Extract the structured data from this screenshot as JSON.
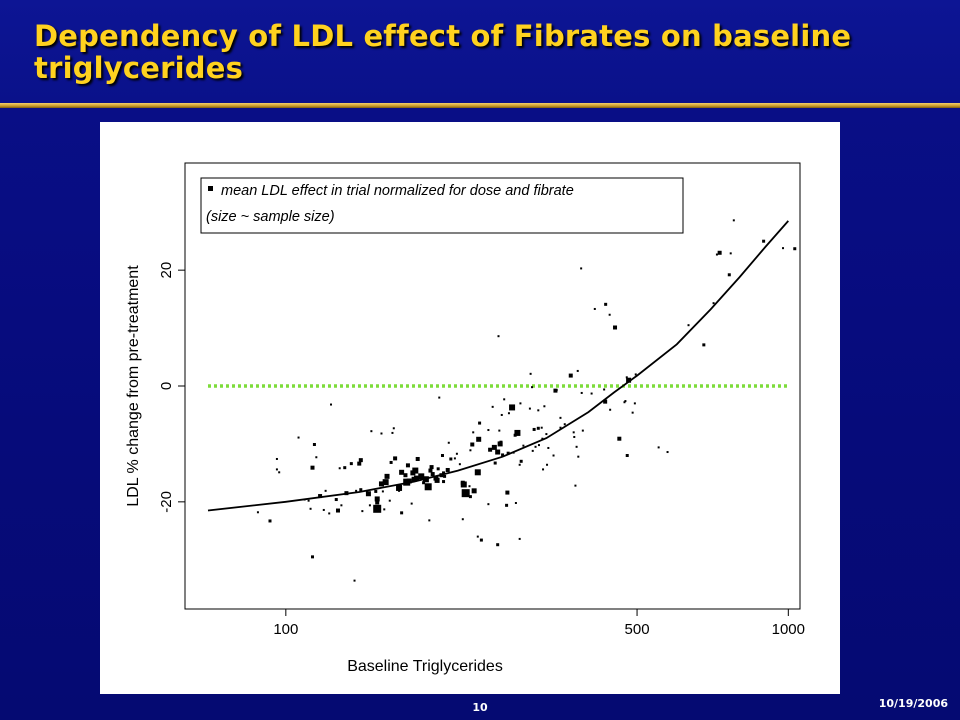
{
  "slide": {
    "title": "Dependency of LDL effect of Fibrates on baseline triglycerides",
    "date": "10/19/2006",
    "page_number": "10",
    "colors": {
      "background": "#08108a",
      "title": "#ffd21f",
      "rule": "#d4a83a",
      "reference_line": "#7ddc3a"
    }
  },
  "chart_data": {
    "type": "scatter",
    "xlabel": "Baseline Triglycerides",
    "ylabel": "LDL % change from pre-treatment",
    "x_scale": "log",
    "xlim": [
      63,
      1055
    ],
    "ylim": [
      -38.5,
      38.5
    ],
    "x_ticks": [
      100,
      500,
      1000
    ],
    "x_tick_labels": [
      "100",
      "500",
      "1000"
    ],
    "y_ticks": [
      -20,
      0,
      20
    ],
    "y_tick_labels": [
      "-20",
      "0",
      "20"
    ],
    "legend": {
      "position": "top-left",
      "line1": "mean LDL effect in trial normalized for dose and fibrate",
      "line2": "(size ~ sample size)"
    },
    "reference_line": {
      "y": 0,
      "style": "dotted",
      "color": "#7ddc3a"
    },
    "fit_curve": [
      [
        70,
        -21.5
      ],
      [
        100,
        -20
      ],
      [
        140,
        -18.3
      ],
      [
        180,
        -16.5
      ],
      [
        220,
        -14.6
      ],
      [
        270,
        -12.2
      ],
      [
        330,
        -9.0
      ],
      [
        400,
        -4.5
      ],
      [
        450,
        -1.1
      ],
      [
        500,
        1.8
      ],
      [
        600,
        7.2
      ],
      [
        700,
        13.2
      ],
      [
        800,
        18.8
      ],
      [
        900,
        24.0
      ],
      [
        1000,
        28.5
      ]
    ],
    "points": [
      [
        88,
        -21.8,
        2
      ],
      [
        93,
        -23.3,
        3
      ],
      [
        96,
        -12.6,
        2
      ],
      [
        96,
        -14.4,
        2
      ],
      [
        97,
        -14.9,
        2
      ],
      [
        106,
        -8.9,
        2
      ],
      [
        109,
        -19.6,
        2
      ],
      [
        111,
        -19.8,
        2
      ],
      [
        112,
        -21.2,
        2
      ],
      [
        113,
        -14.1,
        4
      ],
      [
        113,
        -29.5,
        3
      ],
      [
        114,
        -10.1,
        3
      ],
      [
        115,
        -12.3,
        2
      ],
      [
        117,
        -19.0,
        4
      ],
      [
        119,
        -21.4,
        2
      ],
      [
        120,
        -18.1,
        2
      ],
      [
        122,
        -22.0,
        2
      ],
      [
        123,
        -3.2,
        2
      ],
      [
        126,
        -19.6,
        3
      ],
      [
        127,
        -21.5,
        4
      ],
      [
        128,
        -14.2,
        2
      ],
      [
        129,
        -20.6,
        2
      ],
      [
        131,
        -14.1,
        3
      ],
      [
        132,
        -18.5,
        4
      ],
      [
        135,
        -13.4,
        3
      ],
      [
        137,
        -33.6,
        2
      ],
      [
        138,
        -18.1,
        2
      ],
      [
        140,
        -13.4,
        4
      ],
      [
        141,
        -12.8,
        4
      ],
      [
        141,
        -17.9,
        3
      ],
      [
        142,
        -21.6,
        2
      ],
      [
        145,
        -18.2,
        2
      ],
      [
        146,
        -18.6,
        5
      ],
      [
        147,
        -20.6,
        2
      ],
      [
        148,
        -7.8,
        2
      ],
      [
        151,
        -18.2,
        3
      ],
      [
        152,
        -19.5,
        5
      ],
      [
        152,
        -21.2,
        8
      ],
      [
        152,
        -20.1,
        4
      ],
      [
        155,
        -16.9,
        5
      ],
      [
        155,
        -8.2,
        2
      ],
      [
        156,
        -18.2,
        2
      ],
      [
        157,
        -21.3,
        2
      ],
      [
        158,
        -16.6,
        6
      ],
      [
        159,
        -15.6,
        5
      ],
      [
        161,
        -19.8,
        2
      ],
      [
        162,
        -13.2,
        3
      ],
      [
        163,
        -8.1,
        2
      ],
      [
        164,
        -7.3,
        2
      ],
      [
        165,
        -12.5,
        4
      ],
      [
        168,
        -18.1,
        2
      ],
      [
        168,
        -17.6,
        6
      ],
      [
        170,
        -21.9,
        3
      ],
      [
        170,
        -14.9,
        5
      ],
      [
        173,
        -15.4,
        4
      ],
      [
        174,
        -16.6,
        7
      ],
      [
        175,
        -13.7,
        4
      ],
      [
        176,
        -16.4,
        5
      ],
      [
        178,
        -20.3,
        2
      ],
      [
        179,
        -15.0,
        5
      ],
      [
        180,
        -16.1,
        5
      ],
      [
        181,
        -14.6,
        6
      ],
      [
        182,
        -15.9,
        5
      ],
      [
        183,
        -12.6,
        4
      ],
      [
        186,
        -15.6,
        6
      ],
      [
        188,
        -16.7,
        3
      ],
      [
        190,
        -16.1,
        6
      ],
      [
        192,
        -17.4,
        7
      ],
      [
        193,
        -23.2,
        2
      ],
      [
        194,
        -14.6,
        4
      ],
      [
        195,
        -14.0,
        4
      ],
      [
        196,
        -15.2,
        4
      ],
      [
        199,
        -15.9,
        5
      ],
      [
        200,
        -16.3,
        5
      ],
      [
        201,
        -14.3,
        3
      ],
      [
        202,
        -2.0,
        2
      ],
      [
        204,
        -15.4,
        4
      ],
      [
        205,
        -12.0,
        3
      ],
      [
        206,
        -15.0,
        3
      ],
      [
        206,
        -16.5,
        3
      ],
      [
        207,
        -15.6,
        3
      ],
      [
        210,
        -14.5,
        4
      ],
      [
        211,
        -9.8,
        2
      ],
      [
        213,
        -12.6,
        3
      ],
      [
        217,
        -12.5,
        2
      ],
      [
        219,
        -11.7,
        2
      ],
      [
        222,
        -13.5,
        2
      ],
      [
        225,
        -23.0,
        2
      ],
      [
        225,
        -16.7,
        4
      ],
      [
        226,
        -17.0,
        6
      ],
      [
        228,
        -18.5,
        8
      ],
      [
        232,
        -17.3,
        2
      ],
      [
        233,
        -11.1,
        2
      ],
      [
        233,
        -19.1,
        3
      ],
      [
        235,
        -10.1,
        4
      ],
      [
        236,
        -8.0,
        2
      ],
      [
        237,
        -18.1,
        5
      ],
      [
        241,
        -26.0,
        2
      ],
      [
        241,
        -14.9,
        6
      ],
      [
        242,
        -9.2,
        5
      ],
      [
        243,
        -6.4,
        3
      ],
      [
        245,
        -26.6,
        3
      ],
      [
        253,
        -20.4,
        2
      ],
      [
        253,
        -7.6,
        2
      ],
      [
        255,
        -11.0,
        4
      ],
      [
        258,
        -3.6,
        2
      ],
      [
        260,
        -10.6,
        5
      ],
      [
        261,
        -13.3,
        3
      ],
      [
        264,
        -27.4,
        3
      ],
      [
        264,
        -11.4,
        5
      ],
      [
        265,
        8.6,
        2
      ],
      [
        266,
        -7.7,
        2
      ],
      [
        267,
        -10.0,
        5
      ],
      [
        268,
        -9.7,
        3
      ],
      [
        269,
        -5.0,
        2
      ],
      [
        270,
        -11.9,
        3
      ],
      [
        272,
        -2.3,
        2
      ],
      [
        275,
        -20.6,
        3
      ],
      [
        276,
        -18.4,
        4
      ],
      [
        277,
        -11.6,
        3
      ],
      [
        278,
        -4.7,
        2
      ],
      [
        282,
        -3.7,
        6
      ],
      [
        284,
        -11.5,
        2
      ],
      [
        286,
        -8.5,
        3
      ],
      [
        287,
        -20.2,
        2
      ],
      [
        289,
        -8.1,
        6
      ],
      [
        292,
        -13.6,
        2
      ],
      [
        292,
        -26.4,
        2
      ],
      [
        293,
        -3.0,
        2
      ],
      [
        294,
        -13.0,
        3
      ],
      [
        297,
        -10.3,
        2
      ],
      [
        306,
        -3.9,
        2
      ],
      [
        307,
        2.1,
        2
      ],
      [
        309,
        -0.2,
        2
      ],
      [
        310,
        -11.2,
        2
      ],
      [
        312,
        -7.5,
        3
      ],
      [
        314,
        -10.5,
        2
      ],
      [
        318,
        -7.3,
        3
      ],
      [
        318,
        -4.2,
        2
      ],
      [
        319,
        -10.2,
        2
      ],
      [
        323,
        -7.2,
        2
      ],
      [
        324,
        -9.1,
        2
      ],
      [
        325,
        -14.4,
        2
      ],
      [
        327,
        -3.5,
        2
      ],
      [
        330,
        -8.3,
        2
      ],
      [
        331,
        -13.6,
        2
      ],
      [
        333,
        -10.7,
        2
      ],
      [
        341,
        -12.0,
        2
      ],
      [
        344,
        -0.8,
        4
      ],
      [
        346,
        -0.7,
        2
      ],
      [
        352,
        -5.5,
        2
      ],
      [
        352,
        -7.2,
        2
      ],
      [
        359,
        -6.6,
        2
      ],
      [
        369,
        1.8,
        4
      ],
      [
        374,
        -8.0,
        2
      ],
      [
        375,
        -8.8,
        2
      ],
      [
        377,
        -17.2,
        2
      ],
      [
        379,
        -10.5,
        2
      ],
      [
        381,
        2.6,
        2
      ],
      [
        382,
        -12.2,
        2
      ],
      [
        387,
        20.3,
        2
      ],
      [
        388,
        -1.2,
        2
      ],
      [
        390,
        -7.7,
        2
      ],
      [
        406,
        -1.3,
        2
      ],
      [
        412,
        13.3,
        2
      ],
      [
        430,
        -0.6,
        2
      ],
      [
        432,
        -2.7,
        4
      ],
      [
        433,
        14.1,
        3
      ],
      [
        441,
        12.3,
        2
      ],
      [
        442,
        -4.1,
        2
      ],
      [
        452,
        10.1,
        4
      ],
      [
        461,
        -9.1,
        4
      ],
      [
        472,
        -2.8,
        2
      ],
      [
        474,
        -2.6,
        2
      ],
      [
        477,
        1.5,
        2
      ],
      [
        478,
        -12.0,
        3
      ],
      [
        481,
        1.0,
        5
      ],
      [
        490,
        -4.6,
        2
      ],
      [
        495,
        -3.0,
        2
      ],
      [
        497,
        2.0,
        2
      ],
      [
        552,
        -10.6,
        2
      ],
      [
        575,
        -11.4,
        2
      ],
      [
        633,
        10.5,
        2
      ],
      [
        679,
        7.1,
        3
      ],
      [
        710,
        14.3,
        2
      ],
      [
        721,
        22.7,
        2
      ],
      [
        730,
        23.0,
        4
      ],
      [
        763,
        19.2,
        3
      ],
      [
        768,
        22.9,
        2
      ],
      [
        779,
        28.6,
        2
      ],
      [
        893,
        25.0,
        3
      ],
      [
        976,
        23.8,
        2
      ],
      [
        1030,
        23.7,
        3
      ]
    ]
  }
}
